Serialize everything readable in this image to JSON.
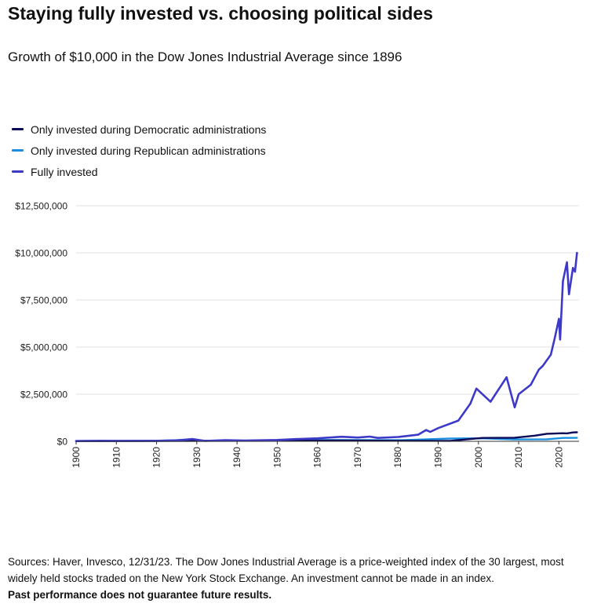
{
  "title": "Staying fully invested vs. choosing political sides",
  "subtitle": "Growth of $10,000 in the Dow Jones Industrial Average since 1896",
  "footer": {
    "sources": "Sources: Haver, Invesco, 12/31/23. The Dow Jones Industrial Average is a price-weighted index of the 30 largest, most widely held stocks traded on the New York Stock Exchange. An investment cannot be made in an index.",
    "disclaimer": "Past performance does not guarantee future results."
  },
  "chart_data": {
    "type": "line",
    "title": "Growth of $10,000 in the Dow Jones Industrial Average since 1896",
    "xlabel": "",
    "ylabel": "",
    "xlim": [
      1900,
      2025
    ],
    "ylim": [
      0,
      12500000
    ],
    "grid": true,
    "legend_position": "top-left",
    "x_ticks": [
      1900,
      1910,
      1920,
      1930,
      1940,
      1950,
      1960,
      1970,
      1980,
      1990,
      2000,
      2010,
      2020
    ],
    "y_ticks": [
      0,
      2500000,
      5000000,
      7500000,
      10000000,
      12500000
    ],
    "y_tick_labels": [
      "$0",
      "$2,500,000",
      "$5,000,000",
      "$7,500,000",
      "$10,000,000",
      "$12,500,000"
    ],
    "series": [
      {
        "name": "Only invested during Democratic administrations",
        "color": "#0b0b5a",
        "points": [
          [
            1900,
            12000
          ],
          [
            1920,
            20000
          ],
          [
            1930,
            25000
          ],
          [
            1950,
            30000
          ],
          [
            1965,
            40000
          ],
          [
            1980,
            30000
          ],
          [
            1993,
            25000
          ],
          [
            1998,
            120000
          ],
          [
            2001,
            180000
          ],
          [
            2009,
            190000
          ],
          [
            2014,
            300000
          ],
          [
            2017,
            400000
          ],
          [
            2021,
            430000
          ],
          [
            2022,
            420000
          ],
          [
            2023.5,
            470000
          ],
          [
            2024.5,
            480000
          ]
        ]
      },
      {
        "name": "Only invested during Republican administrations",
        "color": "#1a8fe0",
        "points": [
          [
            1900,
            12000
          ],
          [
            1920,
            25000
          ],
          [
            1929,
            90000
          ],
          [
            1932,
            30000
          ],
          [
            1953,
            40000
          ],
          [
            1961,
            70000
          ],
          [
            1981,
            60000
          ],
          [
            1993,
            150000
          ],
          [
            2001,
            160000
          ],
          [
            2009,
            100000
          ],
          [
            2017,
            110000
          ],
          [
            2021,
            180000
          ],
          [
            2024.5,
            185000
          ]
        ]
      },
      {
        "name": "Fully invested",
        "color": "#3d39c9",
        "points": [
          [
            1900,
            15000
          ],
          [
            1906,
            30000
          ],
          [
            1910,
            25000
          ],
          [
            1920,
            30000
          ],
          [
            1925,
            50000
          ],
          [
            1929,
            120000
          ],
          [
            1932,
            20000
          ],
          [
            1937,
            60000
          ],
          [
            1942,
            40000
          ],
          [
            1950,
            70000
          ],
          [
            1955,
            120000
          ],
          [
            1960,
            160000
          ],
          [
            1966,
            240000
          ],
          [
            1970,
            200000
          ],
          [
            1973,
            250000
          ],
          [
            1975,
            180000
          ],
          [
            1980,
            230000
          ],
          [
            1985,
            350000
          ],
          [
            1987,
            600000
          ],
          [
            1988,
            500000
          ],
          [
            1990,
            700000
          ],
          [
            1995,
            1100000
          ],
          [
            1998,
            2000000
          ],
          [
            1999.5,
            2800000
          ],
          [
            2002,
            2300000
          ],
          [
            2003,
            2100000
          ],
          [
            2007,
            3400000
          ],
          [
            2009,
            1800000
          ],
          [
            2010,
            2500000
          ],
          [
            2013,
            3000000
          ],
          [
            2015,
            3800000
          ],
          [
            2016,
            4000000
          ],
          [
            2018,
            4600000
          ],
          [
            2019,
            5500000
          ],
          [
            2020,
            6500000
          ],
          [
            2020.3,
            5400000
          ],
          [
            2021,
            8500000
          ],
          [
            2022,
            9500000
          ],
          [
            2022.5,
            7800000
          ],
          [
            2023,
            8500000
          ],
          [
            2023.5,
            9200000
          ],
          [
            2024,
            9000000
          ],
          [
            2024.5,
            10000000
          ]
        ]
      }
    ]
  }
}
